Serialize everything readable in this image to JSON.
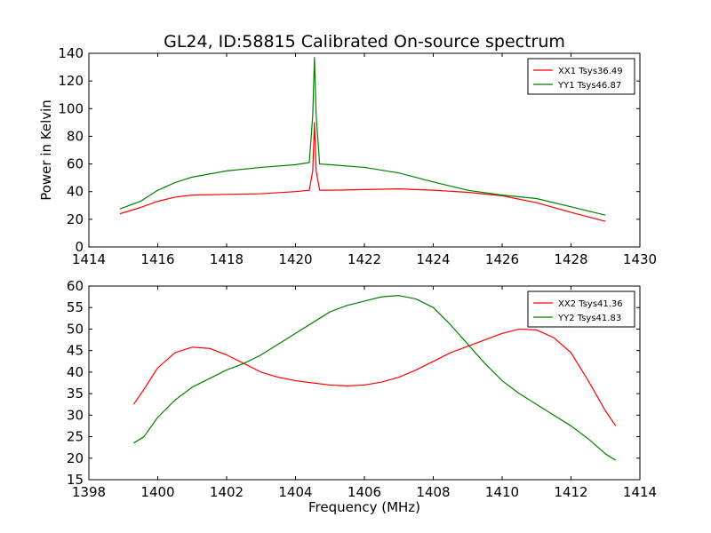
{
  "title": "GL24, ID:58815 Calibrated On-source spectrum",
  "chart_data": [
    {
      "type": "line",
      "ylabel": "Power in Kelvin",
      "xlabel": "",
      "xlim": [
        1414,
        1430
      ],
      "ylim": [
        0,
        140
      ],
      "xticks": [
        1414,
        1416,
        1418,
        1420,
        1422,
        1424,
        1426,
        1428,
        1430
      ],
      "yticks": [
        0,
        20,
        40,
        60,
        80,
        100,
        120,
        140
      ],
      "legend_position": "top-right",
      "colors": {
        "XX1 Tsys36.49": "#ff0000",
        "YY1 Tsys46.87": "#008000"
      },
      "series": [
        {
          "name": "XX1 Tsys36.49",
          "color": "#ff0000",
          "points": [
            [
              1414.9,
              24
            ],
            [
              1415.5,
              28.5
            ],
            [
              1416,
              33
            ],
            [
              1416.5,
              36
            ],
            [
              1417,
              37.5
            ],
            [
              1418,
              38
            ],
            [
              1419,
              38.5
            ],
            [
              1420,
              40
            ],
            [
              1420.4,
              41
            ],
            [
              1420.5,
              55
            ],
            [
              1420.55,
              90
            ],
            [
              1420.6,
              55
            ],
            [
              1420.7,
              41
            ],
            [
              1421,
              41
            ],
            [
              1422,
              41.5
            ],
            [
              1423,
              42
            ],
            [
              1424,
              41
            ],
            [
              1425,
              39.5
            ],
            [
              1426,
              37
            ],
            [
              1427,
              32
            ],
            [
              1428,
              25
            ],
            [
              1429,
              18.5
            ]
          ]
        },
        {
          "name": "YY1 Tsys46.87",
          "color": "#008000",
          "points": [
            [
              1414.9,
              27.5
            ],
            [
              1415.5,
              33
            ],
            [
              1416,
              41
            ],
            [
              1416.5,
              46.5
            ],
            [
              1417,
              50.5
            ],
            [
              1418,
              55
            ],
            [
              1419,
              57.5
            ],
            [
              1420,
              59.5
            ],
            [
              1420.4,
              61
            ],
            [
              1420.5,
              95
            ],
            [
              1420.55,
              137
            ],
            [
              1420.6,
              95
            ],
            [
              1420.7,
              60
            ],
            [
              1421,
              59.5
            ],
            [
              1422,
              57.5
            ],
            [
              1423,
              53.5
            ],
            [
              1424,
              47
            ],
            [
              1425,
              41
            ],
            [
              1426,
              37.5
            ],
            [
              1427,
              35
            ],
            [
              1428,
              29
            ],
            [
              1429,
              23
            ]
          ]
        }
      ]
    },
    {
      "type": "line",
      "ylabel": "",
      "xlabel": "Frequency (MHz)",
      "xlim": [
        1398,
        1414
      ],
      "ylim": [
        15,
        60
      ],
      "xticks": [
        1398,
        1400,
        1402,
        1404,
        1406,
        1408,
        1410,
        1412,
        1414
      ],
      "yticks": [
        15,
        20,
        25,
        30,
        35,
        40,
        45,
        50,
        55,
        60
      ],
      "legend_position": "top-right",
      "colors": {
        "XX2 Tsys41.36": "#ff0000",
        "YY2 Tsys41.83": "#008000"
      },
      "series": [
        {
          "name": "XX2 Tsys41.36",
          "color": "#ff0000",
          "points": [
            [
              1399.3,
              32.5
            ],
            [
              1399.6,
              36
            ],
            [
              1400,
              41
            ],
            [
              1400.5,
              44.5
            ],
            [
              1401,
              45.8
            ],
            [
              1401.5,
              45.5
            ],
            [
              1402,
              44
            ],
            [
              1402.5,
              42
            ],
            [
              1403,
              40
            ],
            [
              1403.5,
              38.8
            ],
            [
              1404,
              38
            ],
            [
              1404.5,
              37.5
            ],
            [
              1405,
              37
            ],
            [
              1405.5,
              36.8
            ],
            [
              1406,
              37
            ],
            [
              1406.5,
              37.7
            ],
            [
              1407,
              38.8
            ],
            [
              1407.5,
              40.5
            ],
            [
              1408,
              42.5
            ],
            [
              1408.5,
              44.5
            ],
            [
              1409,
              46
            ],
            [
              1409.5,
              47.5
            ],
            [
              1410,
              49
            ],
            [
              1410.5,
              50
            ],
            [
              1411,
              49.8
            ],
            [
              1411.5,
              48
            ],
            [
              1412,
              44.5
            ],
            [
              1412.5,
              38
            ],
            [
              1413,
              31
            ],
            [
              1413.3,
              27.5
            ]
          ]
        },
        {
          "name": "YY2 Tsys41.83",
          "color": "#008000",
          "points": [
            [
              1399.3,
              23.5
            ],
            [
              1399.6,
              25
            ],
            [
              1400,
              29.5
            ],
            [
              1400.5,
              33.5
            ],
            [
              1401,
              36.5
            ],
            [
              1401.5,
              38.5
            ],
            [
              1402,
              40.5
            ],
            [
              1402.5,
              42
            ],
            [
              1403,
              44
            ],
            [
              1403.5,
              46.5
            ],
            [
              1404,
              49
            ],
            [
              1404.5,
              51.5
            ],
            [
              1405,
              54
            ],
            [
              1405.5,
              55.5
            ],
            [
              1406,
              56.5
            ],
            [
              1406.5,
              57.5
            ],
            [
              1407,
              57.8
            ],
            [
              1407.5,
              57
            ],
            [
              1408,
              55
            ],
            [
              1408.5,
              51
            ],
            [
              1409,
              46.5
            ],
            [
              1409.5,
              42
            ],
            [
              1410,
              38
            ],
            [
              1410.5,
              35
            ],
            [
              1411,
              32.5
            ],
            [
              1411.5,
              30
            ],
            [
              1412,
              27.5
            ],
            [
              1412.5,
              24.5
            ],
            [
              1413,
              21
            ],
            [
              1413.3,
              19.5
            ]
          ]
        }
      ]
    }
  ]
}
